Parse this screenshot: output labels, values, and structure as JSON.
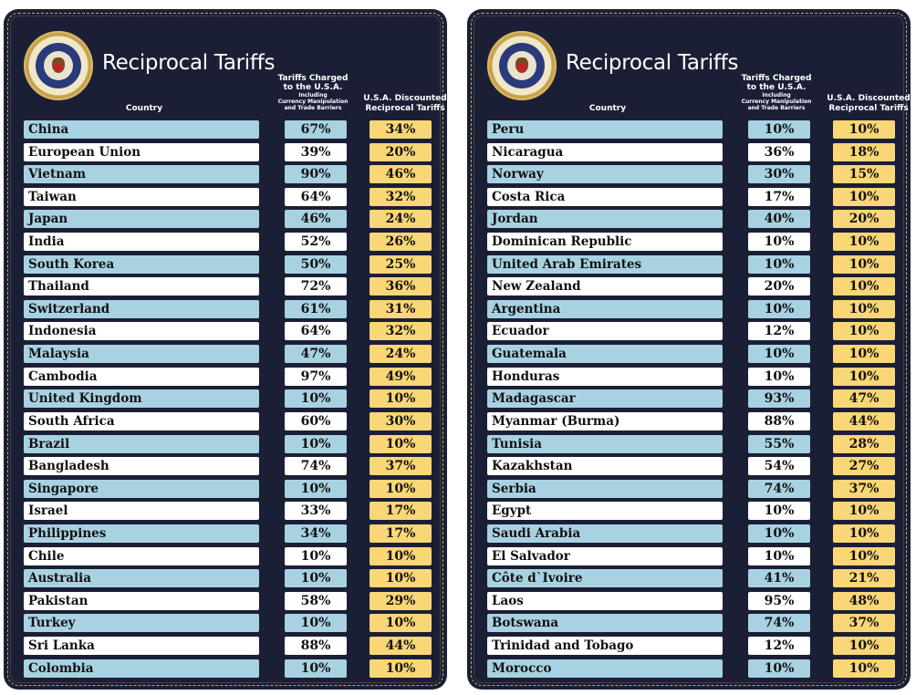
{
  "title": "Reciprocal Tariffs",
  "headers": {
    "country": "Country",
    "charged_line1": "Tariffs Charged",
    "charged_line2": "to the U.S.A.",
    "charged_sub1": "Including",
    "charged_sub2": "Currency Manipulation",
    "charged_sub3": "and Trade Barriers",
    "discount_line1": "U.S.A. Discounted",
    "discount_line2": "Reciprocal Tariffs"
  },
  "seal_text": "SEAL OF THE PRESIDENT OF THE UNITED STATES",
  "colors": {
    "background": "#1b1f36",
    "row_blue": "#a8d2e2",
    "row_white": "#ffffff",
    "discount_yellow": "#f9d676",
    "border_gold": "#c8a75a"
  },
  "panels": [
    {
      "rows": [
        {
          "country": "China",
          "charged": "67%",
          "discounted": "34%"
        },
        {
          "country": "European Union",
          "charged": "39%",
          "discounted": "20%"
        },
        {
          "country": "Vietnam",
          "charged": "90%",
          "discounted": "46%"
        },
        {
          "country": "Taiwan",
          "charged": "64%",
          "discounted": "32%"
        },
        {
          "country": "Japan",
          "charged": "46%",
          "discounted": "24%"
        },
        {
          "country": "India",
          "charged": "52%",
          "discounted": "26%"
        },
        {
          "country": "South Korea",
          "charged": "50%",
          "discounted": "25%"
        },
        {
          "country": "Thailand",
          "charged": "72%",
          "discounted": "36%"
        },
        {
          "country": "Switzerland",
          "charged": "61%",
          "discounted": "31%"
        },
        {
          "country": "Indonesia",
          "charged": "64%",
          "discounted": "32%"
        },
        {
          "country": "Malaysia",
          "charged": "47%",
          "discounted": "24%"
        },
        {
          "country": "Cambodia",
          "charged": "97%",
          "discounted": "49%"
        },
        {
          "country": "United Kingdom",
          "charged": "10%",
          "discounted": "10%"
        },
        {
          "country": "South Africa",
          "charged": "60%",
          "discounted": "30%"
        },
        {
          "country": "Brazil",
          "charged": "10%",
          "discounted": "10%"
        },
        {
          "country": "Bangladesh",
          "charged": "74%",
          "discounted": "37%"
        },
        {
          "country": "Singapore",
          "charged": "10%",
          "discounted": "10%"
        },
        {
          "country": "Israel",
          "charged": "33%",
          "discounted": "17%"
        },
        {
          "country": "Philippines",
          "charged": "34%",
          "discounted": "17%"
        },
        {
          "country": "Chile",
          "charged": "10%",
          "discounted": "10%"
        },
        {
          "country": "Australia",
          "charged": "10%",
          "discounted": "10%"
        },
        {
          "country": "Pakistan",
          "charged": "58%",
          "discounted": "29%"
        },
        {
          "country": "Turkey",
          "charged": "10%",
          "discounted": "10%"
        },
        {
          "country": "Sri Lanka",
          "charged": "88%",
          "discounted": "44%"
        },
        {
          "country": "Colombia",
          "charged": "10%",
          "discounted": "10%"
        }
      ]
    },
    {
      "rows": [
        {
          "country": "Peru",
          "charged": "10%",
          "discounted": "10%"
        },
        {
          "country": "Nicaragua",
          "charged": "36%",
          "discounted": "18%"
        },
        {
          "country": "Norway",
          "charged": "30%",
          "discounted": "15%"
        },
        {
          "country": "Costa Rica",
          "charged": "17%",
          "discounted": "10%"
        },
        {
          "country": "Jordan",
          "charged": "40%",
          "discounted": "20%"
        },
        {
          "country": "Dominican Republic",
          "charged": "10%",
          "discounted": "10%"
        },
        {
          "country": "United Arab Emirates",
          "charged": "10%",
          "discounted": "10%"
        },
        {
          "country": "New Zealand",
          "charged": "20%",
          "discounted": "10%"
        },
        {
          "country": "Argentina",
          "charged": "10%",
          "discounted": "10%"
        },
        {
          "country": "Ecuador",
          "charged": "12%",
          "discounted": "10%"
        },
        {
          "country": "Guatemala",
          "charged": "10%",
          "discounted": "10%"
        },
        {
          "country": "Honduras",
          "charged": "10%",
          "discounted": "10%"
        },
        {
          "country": "Madagascar",
          "charged": "93%",
          "discounted": "47%"
        },
        {
          "country": "Myanmar (Burma)",
          "charged": "88%",
          "discounted": "44%"
        },
        {
          "country": "Tunisia",
          "charged": "55%",
          "discounted": "28%"
        },
        {
          "country": "Kazakhstan",
          "charged": "54%",
          "discounted": "27%"
        },
        {
          "country": "Serbia",
          "charged": "74%",
          "discounted": "37%"
        },
        {
          "country": "Egypt",
          "charged": "10%",
          "discounted": "10%"
        },
        {
          "country": "Saudi Arabia",
          "charged": "10%",
          "discounted": "10%"
        },
        {
          "country": "El Salvador",
          "charged": "10%",
          "discounted": "10%"
        },
        {
          "country": "Côte d`Ivoire",
          "charged": "41%",
          "discounted": "21%"
        },
        {
          "country": "Laos",
          "charged": "95%",
          "discounted": "48%"
        },
        {
          "country": "Botswana",
          "charged": "74%",
          "discounted": "37%"
        },
        {
          "country": "Trinidad and Tobago",
          "charged": "12%",
          "discounted": "10%"
        },
        {
          "country": "Morocco",
          "charged": "10%",
          "discounted": "10%"
        }
      ]
    }
  ]
}
